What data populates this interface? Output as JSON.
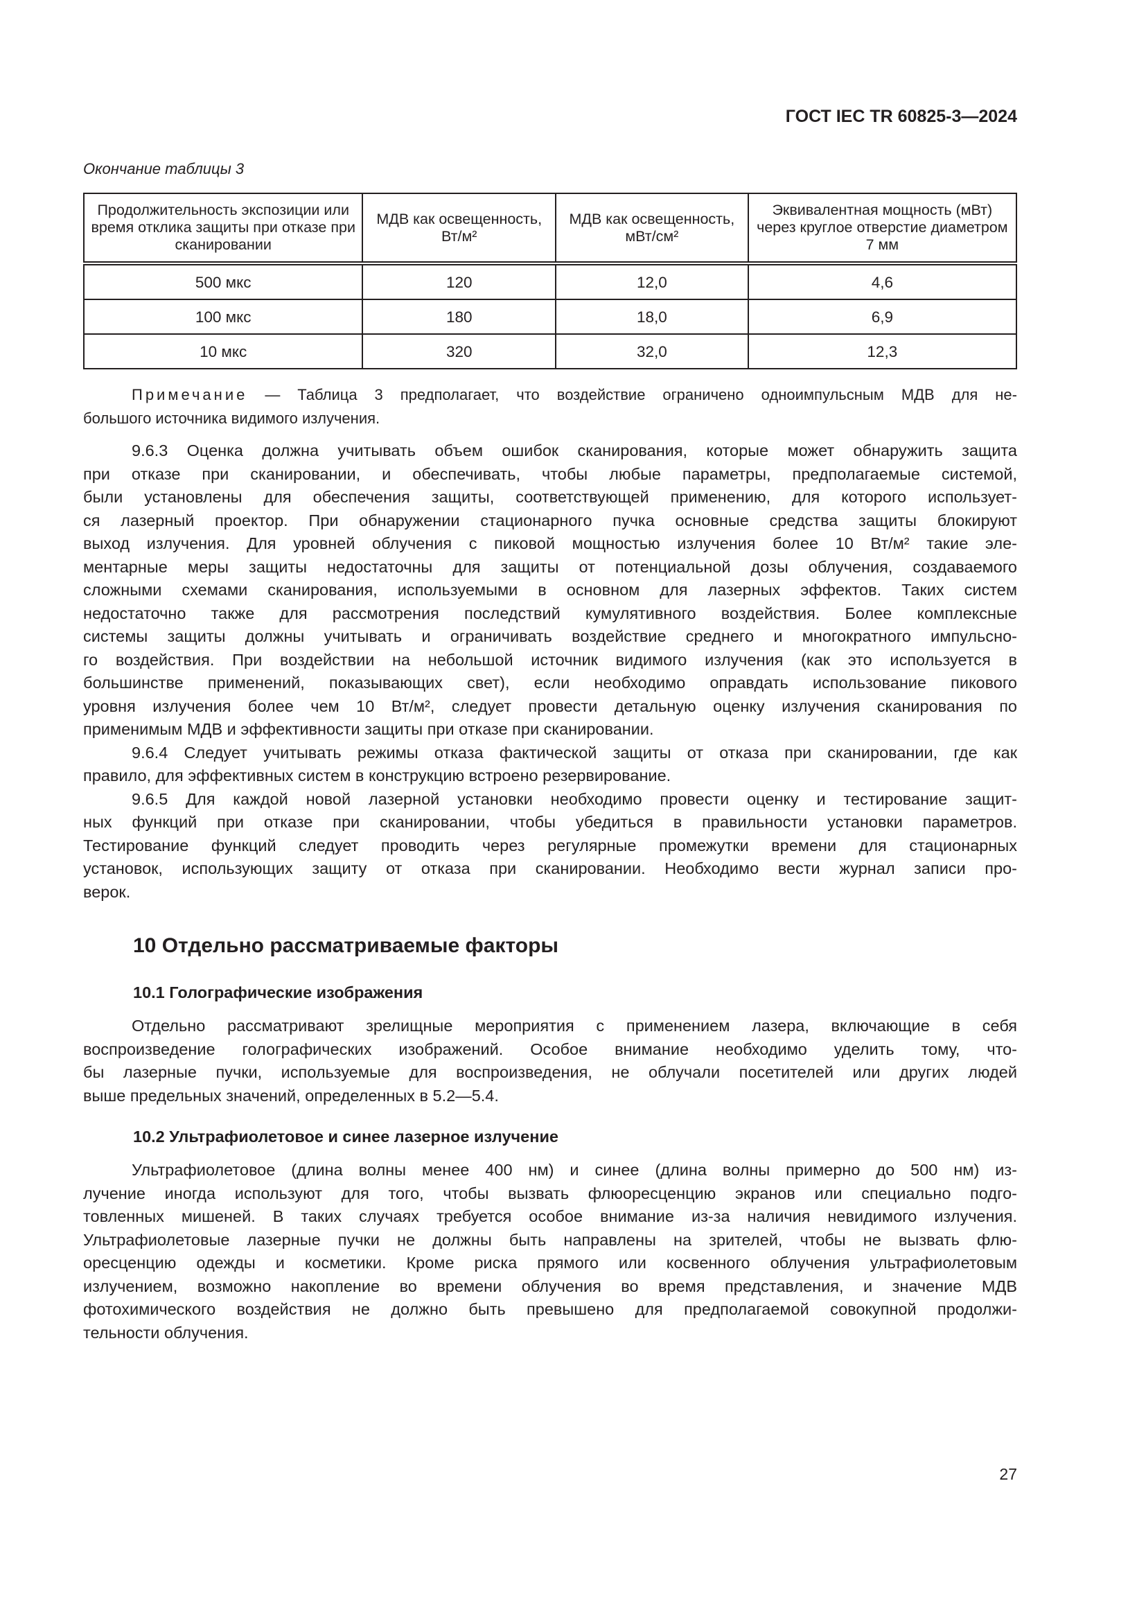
{
  "header": {
    "doc_id": "ГОСТ IEC TR 60825-3—2024"
  },
  "table": {
    "caption": "Окончание таблицы 3",
    "columns": [
      "Продолжительность экспозиции или время отклика защиты при отказе при сканировании",
      "МДВ как освещенность, Вт/м²",
      "МДВ как освещенность, мВт/см²",
      "Эквивалентная мощность (мВт) через круглое отверстие диаметром 7 мм"
    ],
    "rows": [
      [
        "500 мкс",
        "120",
        "12,0",
        "4,6"
      ],
      [
        "100 мкс",
        "180",
        "18,0",
        "6,9"
      ],
      [
        "10 мкс",
        "320",
        "32,0",
        "12,3"
      ]
    ]
  },
  "note": {
    "label": "Примечание",
    "lines": [
      " — Таблица 3 предполагает, что воздействие ограничено одноимпульсным МДВ для не-",
      "большого источника видимого излучения."
    ]
  },
  "body_963": [
    "9.6.3 Оценка должна учитывать объем ошибок сканирования, которые может обнаружить защита",
    "при отказе при сканировании, и обеспечивать, чтобы любые параметры, предполагаемые системой,",
    "были установлены для обеспечения защиты, соответствующей применению, для которого использует-",
    "ся лазерный проектор. При обнаружении стационарного пучка основные средства защиты блокируют",
    "выход излучения. Для уровней облучения с пиковой мощностью излучения более 10 Вт/м² такие эле-",
    "ментарные меры защиты недостаточны для защиты от потенциальной дозы облучения, создаваемого",
    "сложными схемами сканирования, используемыми в основном для лазерных эффектов. Таких систем",
    "недостаточно также для рассмотрения последствий кумулятивного воздействия. Более комплексные",
    "системы защиты должны учитывать и ограничивать воздействие среднего и многократного импульсно-",
    "го воздействия. При воздействии на небольшой источник видимого излучения (как это используется в",
    "большинстве применений, показывающих свет), если необходимо оправдать использование пикового",
    "уровня излучения более чем 10 Вт/м², следует провести детальную оценку излучения сканирования по",
    "применимым МДВ и эффективности защиты при отказе при сканировании."
  ],
  "body_964": [
    "9.6.4 Следует учитывать режимы отказа фактической защиты от отказа при сканировании, где как",
    "правило, для эффективных систем в конструкцию встроено резервирование."
  ],
  "body_965": [
    "9.6.5 Для каждой новой лазерной установки необходимо провести оценку и тестирование защит-",
    "ных функций при отказе при сканировании, чтобы убедиться в правильности установки параметров.",
    "Тестирование функций следует проводить через регулярные промежутки времени для стационарных",
    "установок, использующих защиту от отказа при сканировании. Необходимо вести журнал записи про-",
    "верок."
  ],
  "section10": {
    "heading": "10  Отдельно рассматриваемые факторы",
    "s101_heading": "10.1  Голографические изображения",
    "s101_lines": [
      "Отдельно рассматривают зрелищные мероприятия с применением лазера, включающие в себя",
      "воспроизведение голографических изображений. Особое внимание необходимо уделить тому, что-",
      "бы лазерные пучки, используемые для воспроизведения, не облучали посетителей или других людей",
      "выше предельных значений, определенных в 5.2—5.4."
    ],
    "s102_heading": "10.2  Ультрафиолетовое и синее лазерное излучение",
    "s102_lines": [
      "Ультрафиолетовое (длина волны менее 400 нм) и синее (длина волны примерно до 500 нм) из-",
      "лучение иногда используют для того, чтобы вызвать флюоресценцию экранов или специально подго-",
      "товленных мишеней. В таких случаях требуется особое внимание из-за наличия невидимого излучения.",
      "Ультрафиолетовые лазерные пучки не должны быть направлены на зрителей, чтобы не вызвать флю-",
      "оресценцию одежды и косметики. Кроме риска прямого или косвенного облучения ультрафиолетовым",
      "излучением, возможно накопление во времени облучения во время представления, и значение МДВ",
      "фотохимического воздействия не должно быть превышено для предполагаемой совокупной продолжи-",
      "тельности облучения."
    ]
  },
  "page_number": "27"
}
